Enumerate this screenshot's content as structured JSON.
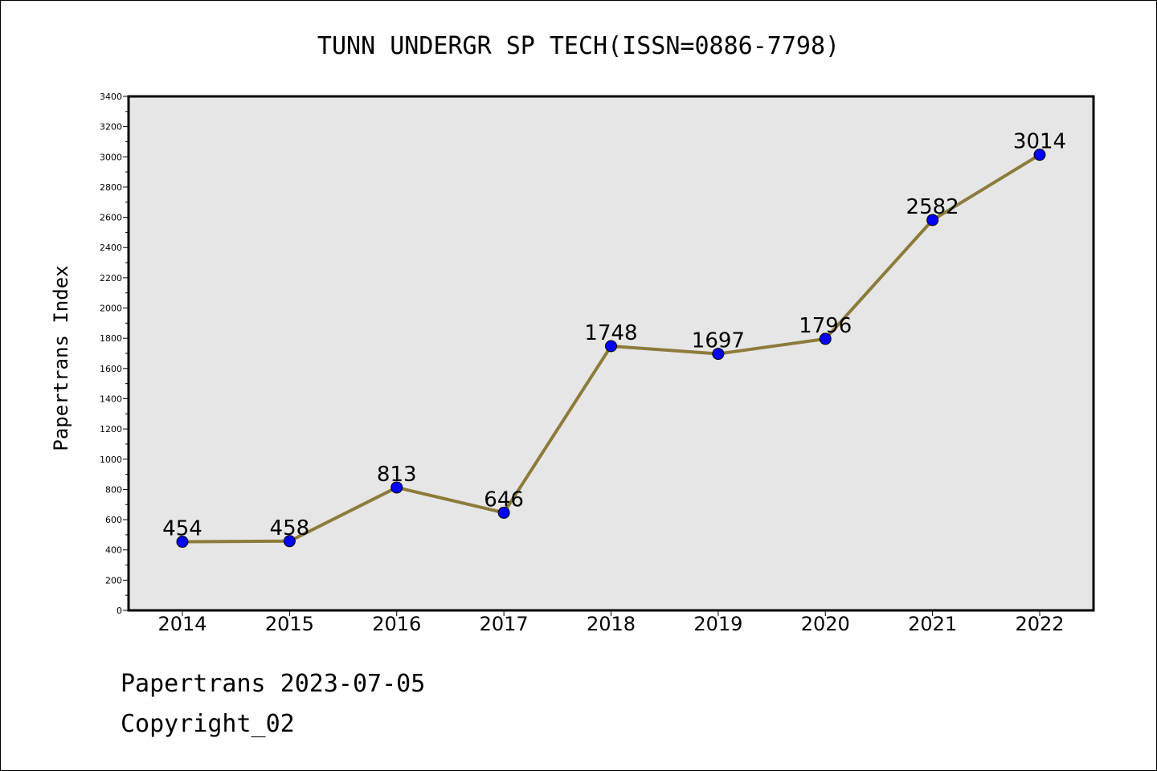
{
  "chart_data": {
    "type": "line",
    "title": "TUNN UNDERGR SP TECH(ISSN=0886-7798)",
    "xlabel": "",
    "ylabel": "Papertrans Index",
    "categories": [
      "2014",
      "2015",
      "2016",
      "2017",
      "2018",
      "2019",
      "2020",
      "2021",
      "2022"
    ],
    "values": [
      454,
      458,
      813,
      646,
      1748,
      1697,
      1796,
      2582,
      3014
    ],
    "data_labels": [
      "454",
      "458",
      "813",
      "646",
      "1748",
      "1697",
      "1796",
      "2582",
      "3014"
    ],
    "ylim": [
      0,
      3400
    ],
    "yticks": [
      "0",
      "200",
      "400",
      "600",
      "800",
      "1000",
      "1200",
      "1400",
      "1600",
      "1800",
      "2000",
      "2200",
      "2400",
      "2600",
      "2800",
      "3000",
      "3200",
      "3400"
    ],
    "grid": false,
    "legend": "none",
    "colors": {
      "line": "#8c7b3a",
      "marker": "#0000ff",
      "plot_background": "#e6e6e6"
    }
  },
  "footer": {
    "date_text": "Papertrans 2023-07-05",
    "copyright_text": "Copyright_02"
  }
}
